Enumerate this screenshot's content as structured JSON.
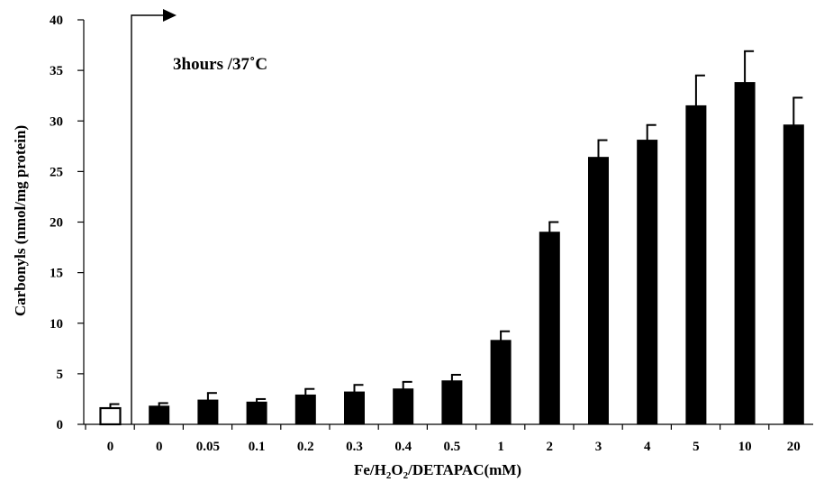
{
  "chart_data": {
    "type": "bar",
    "title": "",
    "xlabel": "Fe/H₂O₂/DETAPAC(mM)",
    "xlabel_parts": [
      "Fe/H",
      "2",
      "O",
      "2",
      "/DETAPAC(mM)"
    ],
    "ylabel": "Carbonyls (nmol/mg protein)",
    "ylim": [
      0,
      40
    ],
    "yticks": [
      0,
      5,
      10,
      15,
      20,
      25,
      30,
      35,
      40
    ],
    "categories": [
      "0",
      "0",
      "0.05",
      "0.1",
      "0.2",
      "0.3",
      "0.4",
      "0.5",
      "1",
      "2",
      "3",
      "4",
      "5",
      "10",
      "20"
    ],
    "values": [
      1.6,
      1.8,
      2.4,
      2.2,
      2.9,
      3.2,
      3.5,
      4.3,
      8.3,
      19.0,
      26.4,
      28.1,
      31.5,
      33.8,
      29.6
    ],
    "errors": [
      0.4,
      0.3,
      0.7,
      0.3,
      0.6,
      0.7,
      0.7,
      0.6,
      0.9,
      1.0,
      1.7,
      1.5,
      3.0,
      3.1,
      2.7
    ],
    "bar_fill": [
      "#ffffff",
      "#000000",
      "#000000",
      "#000000",
      "#000000",
      "#000000",
      "#000000",
      "#000000",
      "#000000",
      "#000000",
      "#000000",
      "#000000",
      "#000000",
      "#000000",
      "#000000"
    ],
    "grid": false,
    "legend": "none",
    "annotation": "3hours /37˚C",
    "marker": "arrow from first treated bar rightward at top"
  }
}
